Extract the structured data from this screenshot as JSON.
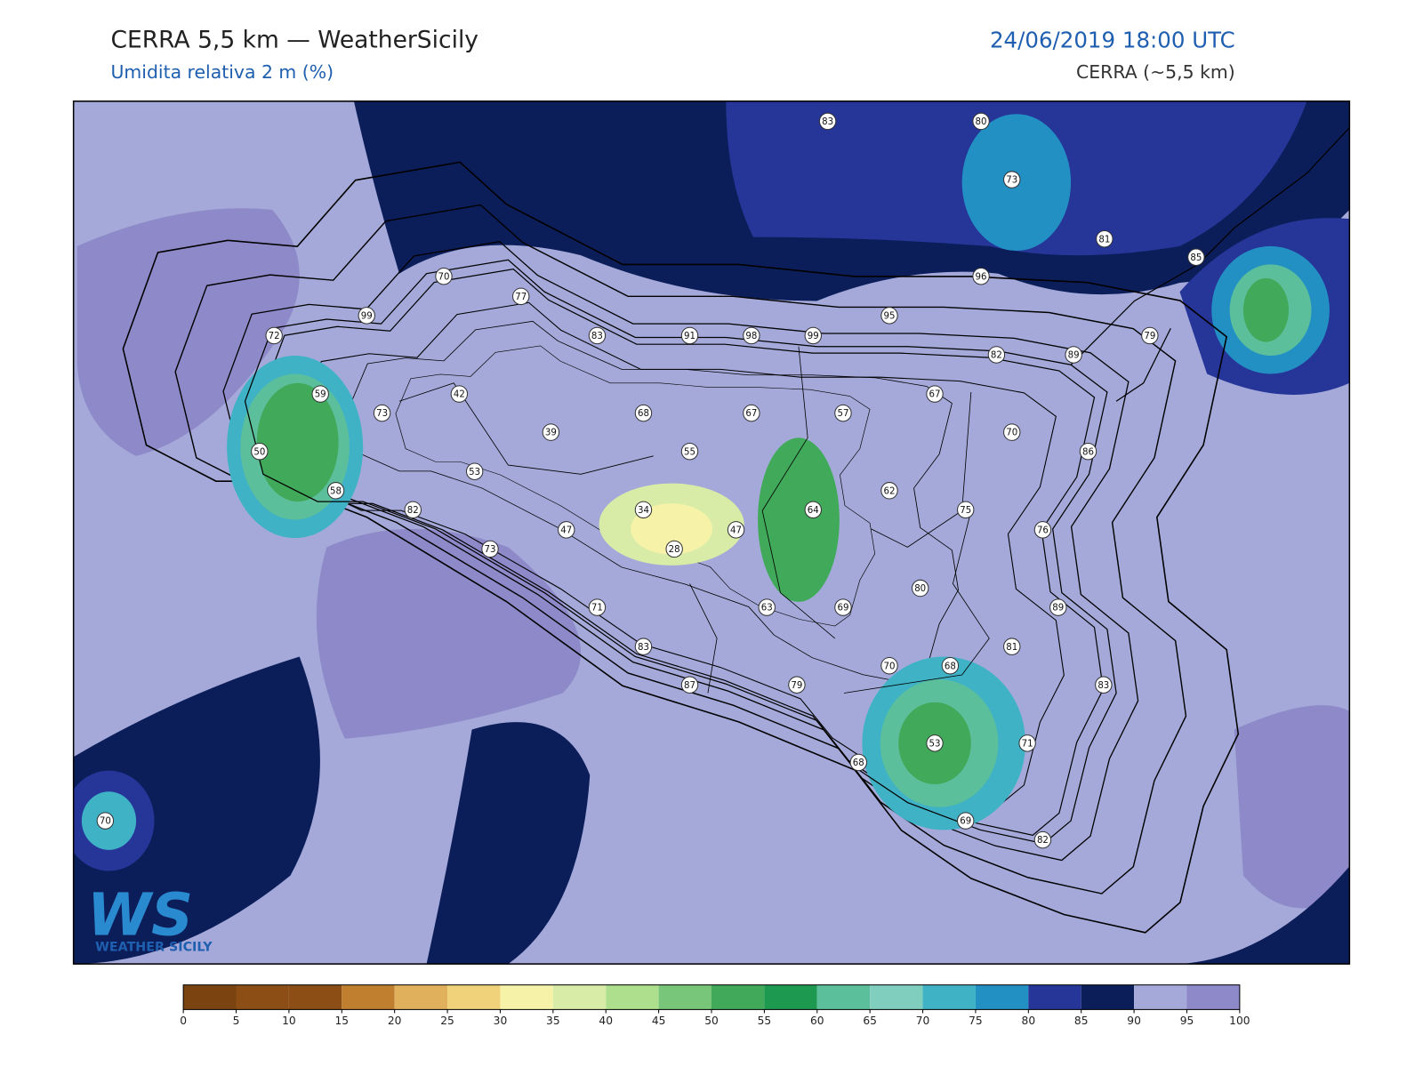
{
  "header": {
    "title": "CERRA 5,5 km — WeatherSicily",
    "subtitle": "Umidita relativa 2 m (%)",
    "datetime": "24/06/2019 18:00 UTC",
    "model": "CERRA (~5,5 km)"
  },
  "stations": [
    83,
    80,
    73,
    81,
    85,
    96,
    70,
    77,
    99,
    95,
    72,
    83,
    91,
    98,
    99,
    79,
    82,
    89,
    59,
    42,
    67,
    73,
    68,
    67,
    57,
    39,
    70,
    50,
    55,
    86,
    53,
    58,
    62,
    82,
    34,
    64,
    75,
    47,
    47,
    76,
    28,
    73,
    80,
    63,
    69,
    71,
    89,
    83,
    81,
    70,
    68,
    87,
    79,
    83,
    53,
    71,
    68,
    69,
    82,
    70
  ],
  "colorbar": {
    "ticks": [
      0,
      5,
      10,
      15,
      20,
      25,
      30,
      35,
      40,
      45,
      50,
      55,
      60,
      65,
      70,
      75,
      80,
      85,
      90,
      95,
      100
    ],
    "colors": [
      "#7b4310",
      "#8c4e14",
      "#8c4e14",
      "#c07f2e",
      "#e0b05c",
      "#f0d27a",
      "#f6f3a8",
      "#d8eca8",
      "#addf8c",
      "#78c67a",
      "#40aa5a",
      "#1e9a50",
      "#5cbf9c",
      "#80cfbe",
      "#3fb2c6",
      "#2390c4",
      "#253598",
      "#0c1e5a",
      "#a4a9d9",
      "#8e89c8"
    ]
  },
  "logo": {
    "initials": "WS",
    "text": "WEATHER SICILY"
  }
}
